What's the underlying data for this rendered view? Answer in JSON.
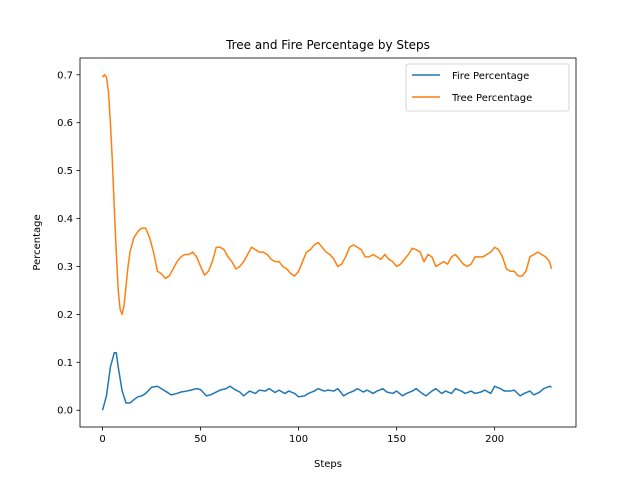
{
  "chart_data": {
    "type": "line",
    "title": "Tree and Fire Percentage by Steps",
    "xlabel": "Steps",
    "ylabel": "Percentage",
    "xlim": [
      -11.5,
      241.5
    ],
    "ylim": [
      -0.035,
      0.735
    ],
    "xticks": [
      0,
      50,
      100,
      150,
      200
    ],
    "yticks": [
      0.0,
      0.1,
      0.2,
      0.3,
      0.4,
      0.5,
      0.6,
      0.7
    ],
    "ytick_labels": [
      "0.0",
      "0.1",
      "0.2",
      "0.3",
      "0.4",
      "0.5",
      "0.6",
      "0.7"
    ],
    "grid": false,
    "legend": "top-right",
    "series": [
      {
        "name": "Fire Percentage",
        "color": "#1f77b4",
        "x": [
          0,
          2,
          4,
          6,
          7,
          8,
          10,
          12,
          14,
          16,
          18,
          20,
          22,
          25,
          28,
          30,
          32,
          35,
          38,
          40,
          43,
          45,
          48,
          50,
          53,
          55,
          58,
          60,
          63,
          65,
          68,
          70,
          72,
          75,
          78,
          80,
          83,
          85,
          88,
          90,
          93,
          95,
          98,
          100,
          103,
          105,
          108,
          110,
          113,
          115,
          118,
          120,
          123,
          125,
          128,
          130,
          133,
          135,
          138,
          140,
          143,
          145,
          148,
          150,
          153,
          155,
          158,
          160,
          163,
          165,
          168,
          170,
          173,
          175,
          178,
          180,
          183,
          185,
          188,
          190,
          193,
          195,
          198,
          200,
          203,
          205,
          208,
          210,
          213,
          215,
          218,
          220,
          223,
          225,
          228,
          229
        ],
        "y": [
          0.0,
          0.03,
          0.09,
          0.12,
          0.12,
          0.09,
          0.04,
          0.015,
          0.015,
          0.022,
          0.028,
          0.03,
          0.035,
          0.048,
          0.05,
          0.045,
          0.04,
          0.032,
          0.035,
          0.038,
          0.04,
          0.042,
          0.045,
          0.043,
          0.03,
          0.032,
          0.038,
          0.042,
          0.045,
          0.05,
          0.042,
          0.038,
          0.03,
          0.04,
          0.035,
          0.042,
          0.04,
          0.045,
          0.037,
          0.042,
          0.035,
          0.04,
          0.035,
          0.028,
          0.03,
          0.035,
          0.04,
          0.045,
          0.04,
          0.042,
          0.04,
          0.045,
          0.03,
          0.035,
          0.04,
          0.045,
          0.038,
          0.042,
          0.035,
          0.04,
          0.045,
          0.038,
          0.035,
          0.04,
          0.03,
          0.035,
          0.04,
          0.045,
          0.035,
          0.03,
          0.04,
          0.045,
          0.035,
          0.04,
          0.035,
          0.045,
          0.04,
          0.035,
          0.04,
          0.035,
          0.038,
          0.042,
          0.035,
          0.05,
          0.045,
          0.04,
          0.04,
          0.042,
          0.03,
          0.035,
          0.04,
          0.032,
          0.038,
          0.045,
          0.05,
          0.048
        ]
      },
      {
        "name": "Tree Percentage",
        "color": "#ff7f0e",
        "x": [
          0,
          1,
          2,
          3,
          4,
          5,
          6,
          7,
          8,
          9,
          10,
          11,
          12,
          13,
          14,
          16,
          18,
          20,
          22,
          24,
          26,
          28,
          30,
          32,
          34,
          36,
          38,
          40,
          42,
          44,
          46,
          48,
          50,
          52,
          54,
          56,
          58,
          60,
          62,
          64,
          66,
          68,
          70,
          72,
          74,
          76,
          78,
          80,
          82,
          84,
          86,
          88,
          90,
          92,
          94,
          96,
          98,
          100,
          102,
          104,
          106,
          108,
          110,
          112,
          114,
          116,
          118,
          120,
          122,
          124,
          126,
          128,
          130,
          132,
          134,
          136,
          138,
          140,
          142,
          144,
          146,
          148,
          150,
          152,
          154,
          156,
          158,
          160,
          162,
          164,
          166,
          168,
          170,
          172,
          174,
          176,
          178,
          180,
          182,
          184,
          186,
          188,
          190,
          192,
          194,
          196,
          198,
          200,
          202,
          204,
          206,
          208,
          210,
          212,
          214,
          216,
          218,
          220,
          222,
          224,
          226,
          228,
          229
        ],
        "y": [
          0.695,
          0.7,
          0.695,
          0.665,
          0.6,
          0.52,
          0.42,
          0.33,
          0.25,
          0.21,
          0.2,
          0.22,
          0.26,
          0.3,
          0.33,
          0.36,
          0.373,
          0.38,
          0.38,
          0.36,
          0.33,
          0.29,
          0.285,
          0.275,
          0.28,
          0.295,
          0.31,
          0.32,
          0.325,
          0.325,
          0.33,
          0.32,
          0.3,
          0.282,
          0.29,
          0.31,
          0.34,
          0.34,
          0.335,
          0.32,
          0.31,
          0.295,
          0.3,
          0.31,
          0.325,
          0.34,
          0.335,
          0.33,
          0.33,
          0.325,
          0.315,
          0.31,
          0.31,
          0.3,
          0.295,
          0.285,
          0.28,
          0.29,
          0.31,
          0.33,
          0.335,
          0.345,
          0.35,
          0.34,
          0.33,
          0.325,
          0.315,
          0.3,
          0.305,
          0.32,
          0.34,
          0.345,
          0.34,
          0.335,
          0.32,
          0.32,
          0.325,
          0.32,
          0.315,
          0.325,
          0.315,
          0.31,
          0.3,
          0.305,
          0.315,
          0.325,
          0.338,
          0.335,
          0.33,
          0.31,
          0.325,
          0.32,
          0.3,
          0.305,
          0.31,
          0.305,
          0.32,
          0.325,
          0.315,
          0.305,
          0.3,
          0.305,
          0.32,
          0.32,
          0.32,
          0.325,
          0.33,
          0.34,
          0.335,
          0.32,
          0.295,
          0.29,
          0.29,
          0.28,
          0.28,
          0.29,
          0.32,
          0.325,
          0.33,
          0.325,
          0.32,
          0.31,
          0.295
        ]
      }
    ]
  }
}
